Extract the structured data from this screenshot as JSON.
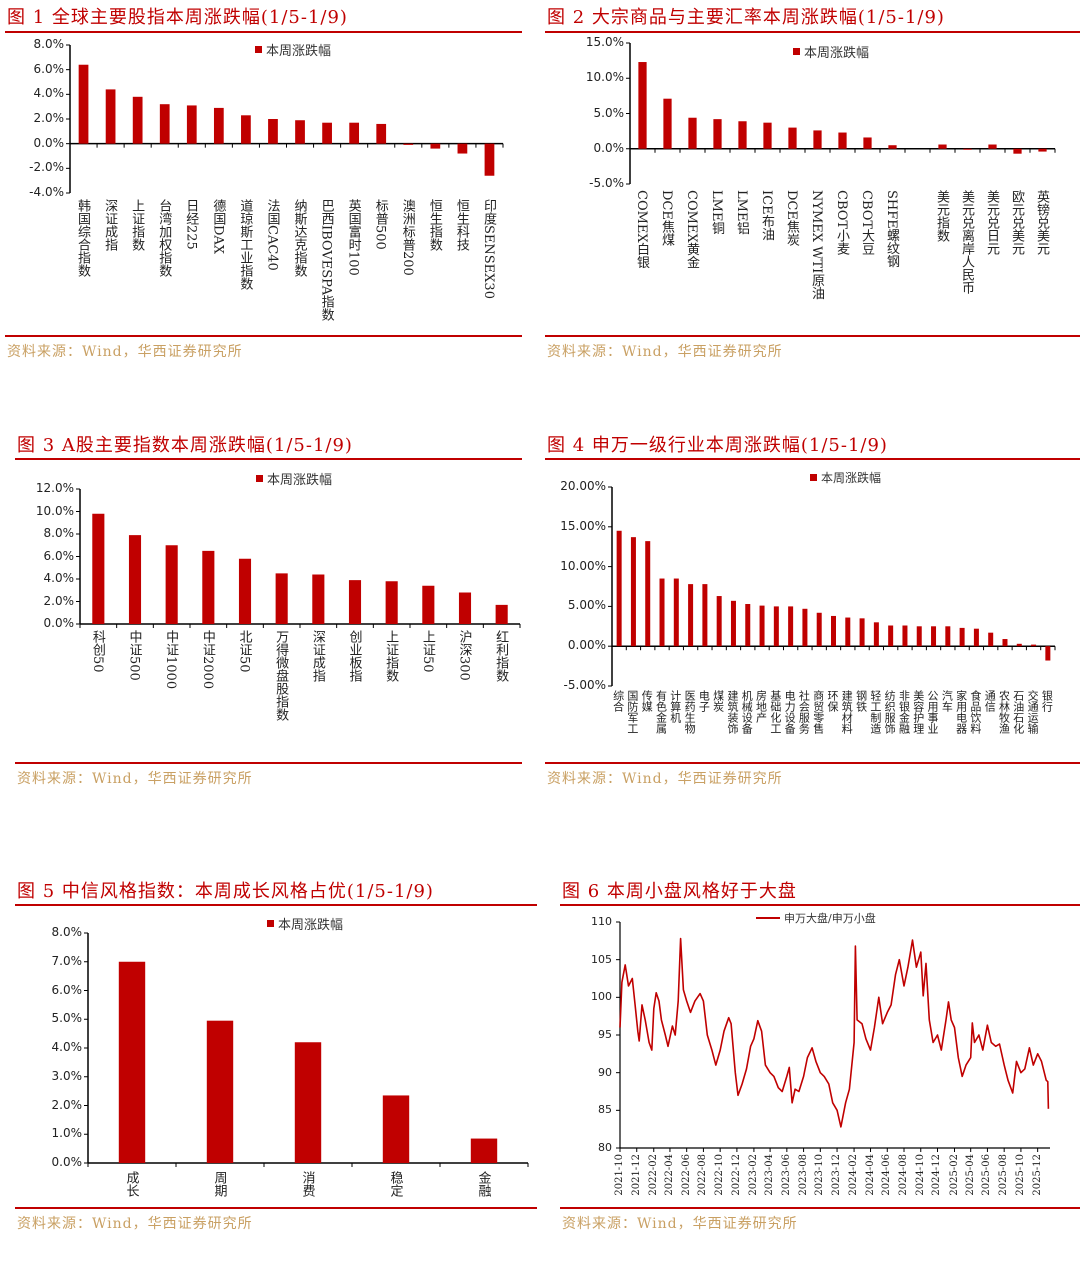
{
  "figures": [
    {
      "title": "图 1  全球主要股指本周涨跌幅(1/5-1/9)",
      "source": "资料来源：Wind，华西证券研究所"
    },
    {
      "title": "图 2  大宗商品与主要汇率本周涨跌幅(1/5-1/9)",
      "source": "资料来源：Wind，华西证券研究所"
    },
    {
      "title": "图 3 A股主要指数本周涨跌幅(1/5-1/9)",
      "source": "资料来源：Wind，华西证券研究所"
    },
    {
      "title": "图 4  申万一级行业本周涨跌幅(1/5-1/9)",
      "source": "资料来源：Wind，华西证券研究所"
    },
    {
      "title": "图 5  中信风格指数：本周成长风格占优(1/5-1/9)",
      "source": "资料来源：Wind，华西证券研究所"
    },
    {
      "title": "图 6  本周小盘风格好于大盘",
      "source": "资料来源：Wind，华西证券研究所"
    }
  ],
  "colors": {
    "bar": "#c00000",
    "title": "#c00000",
    "source": "#c9a063"
  },
  "chart_data": [
    {
      "type": "bar",
      "legend": "本周涨跌幅",
      "legend_position": "top-center",
      "categories": [
        "韩国综合指数",
        "深证成指",
        "上证指数",
        "台湾加权指数",
        "日经225",
        "德国DAX",
        "道琼斯工业指数",
        "法国CAC40",
        "纳斯达克指数",
        "巴西IBOVESPA指数",
        "英国富时100",
        "标普500",
        "澳洲标普200",
        "恒生指数",
        "恒生科技",
        "印度SENSEX30"
      ],
      "values": [
        6.4,
        4.4,
        3.8,
        3.2,
        3.1,
        2.9,
        2.3,
        2.0,
        1.9,
        1.7,
        1.7,
        1.6,
        -0.1,
        -0.4,
        -0.8,
        -2.6
      ],
      "ylim": [
        -4,
        8
      ],
      "yticks": [
        8,
        6,
        4,
        2,
        0,
        -2,
        -4
      ],
      "ytick_labels": [
        "8.0%",
        "6.0%",
        "4.0%",
        "2.0%",
        "0.0%",
        "-2.0%",
        "-4.0%"
      ],
      "unit": "%"
    },
    {
      "type": "bar",
      "legend": "本周涨跌幅",
      "legend_position": "top-center",
      "categories": [
        "COMEX白银",
        "DCE焦煤",
        "COMEX黄金",
        "LME铜",
        "LME铝",
        "ICE布油",
        "DCE焦炭",
        "NYMEX WTI原油",
        "CBOT小麦",
        "CBOT大豆",
        "SHFE螺纹钢",
        "",
        "美元指数",
        "美元兑离岸人民币",
        "美元兑日元",
        "欧元兑美元",
        "英镑兑美元"
      ],
      "values": [
        12.3,
        7.1,
        4.4,
        4.2,
        3.9,
        3.7,
        3.0,
        2.6,
        2.3,
        1.6,
        0.5,
        null,
        0.6,
        -0.05,
        0.6,
        -0.7,
        -0.4
      ],
      "ylim": [
        -5,
        15
      ],
      "yticks": [
        15,
        10,
        5,
        0,
        -5
      ],
      "ytick_labels": [
        "15.0%",
        "10.0%",
        "5.0%",
        "0.0%",
        "-5.0%"
      ],
      "unit": "%"
    },
    {
      "type": "bar",
      "legend": "本周涨跌幅",
      "legend_position": "top-center",
      "categories": [
        "科创50",
        "中证500",
        "中证1000",
        "中证2000",
        "北证50",
        "万得微盘股指数",
        "深证成指",
        "创业板指",
        "上证指数",
        "上证50",
        "沪深300",
        "红利指数"
      ],
      "values": [
        9.8,
        7.9,
        7.0,
        6.5,
        5.8,
        4.5,
        4.4,
        3.9,
        3.8,
        3.4,
        2.8,
        1.7
      ],
      "ylim": [
        0,
        12
      ],
      "yticks": [
        12,
        10,
        8,
        6,
        4,
        2,
        0
      ],
      "ytick_labels": [
        "12.0%",
        "10.0%",
        "8.0%",
        "6.0%",
        "4.0%",
        "2.0%",
        "0.0%"
      ],
      "unit": "%"
    },
    {
      "type": "bar",
      "legend": "本周涨跌幅",
      "legend_position": "top-center",
      "categories": [
        "综合",
        "国防军工",
        "传媒",
        "有色金属",
        "计算机",
        "医药生物",
        "电子",
        "煤炭",
        "建筑装饰",
        "机械设备",
        "房地产",
        "基础化工",
        "电力设备",
        "社会服务",
        "商贸零售",
        "环保",
        "建筑材料",
        "钢铁",
        "轻工制造",
        "纺织服饰",
        "非银金融",
        "美容护理",
        "公用事业",
        "汽车",
        "家用电器",
        "食品饮料",
        "通信",
        "农林牧渔",
        "石油石化",
        "交通运输",
        "银行"
      ],
      "values": [
        14.5,
        13.7,
        13.2,
        8.5,
        8.5,
        7.8,
        7.8,
        6.3,
        5.7,
        5.3,
        5.1,
        5.0,
        5.0,
        4.7,
        4.2,
        3.8,
        3.6,
        3.5,
        3.0,
        2.6,
        2.6,
        2.5,
        2.5,
        2.5,
        2.3,
        2.2,
        1.7,
        0.9,
        0.3,
        0.2,
        -1.8
      ],
      "ylim": [
        -5,
        20
      ],
      "yticks": [
        20,
        15,
        10,
        5,
        0,
        -5
      ],
      "ytick_labels": [
        "20.00%",
        "15.00%",
        "10.00%",
        "5.00%",
        "0.00%",
        "-5.00%"
      ],
      "unit": "%"
    },
    {
      "type": "bar",
      "legend": "本周涨跌幅",
      "legend_position": "top-center",
      "categories": [
        "成长",
        "周期",
        "消费",
        "稳定",
        "金融"
      ],
      "values": [
        7.0,
        4.95,
        4.2,
        2.35,
        0.85
      ],
      "ylim": [
        0,
        8
      ],
      "yticks": [
        8,
        7,
        6,
        5,
        4,
        3,
        2,
        1,
        0
      ],
      "ytick_labels": [
        "8.0%",
        "7.0%",
        "6.0%",
        "5.0%",
        "4.0%",
        "3.0%",
        "2.0%",
        "1.0%",
        "0.0%"
      ],
      "unit": "%"
    },
    {
      "type": "line",
      "legend_position": "top-center",
      "series": [
        {
          "name": "申万大盘/申万小盘",
          "points": [
            [
              "2021-10-01",
              96
            ],
            [
              "2021-10-08",
              102
            ],
            [
              "2021-10-20",
              104.3
            ],
            [
              "2021-11-01",
              101.5
            ],
            [
              "2021-11-15",
              102.5
            ],
            [
              "2021-11-25",
              99
            ],
            [
              "2021-12-05",
              95.5
            ],
            [
              "2021-12-10",
              94.2
            ],
            [
              "2021-12-20",
              99
            ],
            [
              "2022-01-01",
              97
            ],
            [
              "2022-01-15",
              94
            ],
            [
              "2022-01-25",
              93
            ],
            [
              "2022-02-01",
              98.5
            ],
            [
              "2022-02-10",
              100.6
            ],
            [
              "2022-02-20",
              99.5
            ],
            [
              "2022-03-01",
              97
            ],
            [
              "2022-03-15",
              95
            ],
            [
              "2022-03-25",
              93.5
            ],
            [
              "2022-04-10",
              96.2
            ],
            [
              "2022-04-20",
              95
            ],
            [
              "2022-05-01",
              99.5
            ],
            [
              "2022-05-10",
              107.8
            ],
            [
              "2022-05-20",
              101
            ],
            [
              "2022-06-01",
              99.5
            ],
            [
              "2022-06-15",
              98
            ],
            [
              "2022-07-01",
              99.5
            ],
            [
              "2022-07-20",
              100.5
            ],
            [
              "2022-08-01",
              99.5
            ],
            [
              "2022-08-15",
              95
            ],
            [
              "2022-09-01",
              93
            ],
            [
              "2022-09-15",
              91
            ],
            [
              "2022-10-01",
              93
            ],
            [
              "2022-10-15",
              95.5
            ],
            [
              "2022-11-01",
              97.3
            ],
            [
              "2022-11-10",
              96.5
            ],
            [
              "2022-11-25",
              90
            ],
            [
              "2022-12-05",
              87
            ],
            [
              "2022-12-20",
              88.5
            ],
            [
              "2023-01-05",
              90.5
            ],
            [
              "2023-01-20",
              93.5
            ],
            [
              "2023-02-01",
              94.5
            ],
            [
              "2023-02-15",
              96.9
            ],
            [
              "2023-03-01",
              95.5
            ],
            [
              "2023-03-15",
              91
            ],
            [
              "2023-04-01",
              90
            ],
            [
              "2023-04-15",
              89.5
            ],
            [
              "2023-05-01",
              88
            ],
            [
              "2023-05-15",
              87.5
            ],
            [
              "2023-06-01",
              89.5
            ],
            [
              "2023-06-10",
              90.7
            ],
            [
              "2023-06-20",
              86
            ],
            [
              "2023-07-01",
              87.8
            ],
            [
              "2023-07-15",
              87.5
            ],
            [
              "2023-08-01",
              89.5
            ],
            [
              "2023-08-15",
              92
            ],
            [
              "2023-09-01",
              93.3
            ],
            [
              "2023-09-15",
              91.5
            ],
            [
              "2023-10-01",
              90
            ],
            [
              "2023-10-15",
              89.5
            ],
            [
              "2023-11-01",
              88.5
            ],
            [
              "2023-11-15",
              86
            ],
            [
              "2023-12-01",
              85
            ],
            [
              "2023-12-15",
              82.8
            ],
            [
              "2024-01-01",
              86
            ],
            [
              "2024-01-15",
              87.8
            ],
            [
              "2024-02-01",
              94
            ],
            [
              "2024-02-06",
              106.8
            ],
            [
              "2024-02-12",
              97
            ],
            [
              "2024-03-01",
              96.5
            ],
            [
              "2024-03-15",
              94.5
            ],
            [
              "2024-04-01",
              93
            ],
            [
              "2024-04-15",
              96
            ],
            [
              "2024-05-01",
              100
            ],
            [
              "2024-05-15",
              96.5
            ],
            [
              "2024-06-01",
              98
            ],
            [
              "2024-06-15",
              99
            ],
            [
              "2024-07-01",
              103
            ],
            [
              "2024-07-15",
              105
            ],
            [
              "2024-08-01",
              101.5
            ],
            [
              "2024-08-15",
              104
            ],
            [
              "2024-09-01",
              107.6
            ],
            [
              "2024-09-15",
              104
            ],
            [
              "2024-10-01",
              106
            ],
            [
              "2024-10-10",
              100.2
            ],
            [
              "2024-10-20",
              104.5
            ],
            [
              "2024-11-01",
              97
            ],
            [
              "2024-11-15",
              94
            ],
            [
              "2024-12-01",
              95
            ],
            [
              "2024-12-15",
              93
            ],
            [
              "2025-01-01",
              97
            ],
            [
              "2025-01-10",
              99.4
            ],
            [
              "2025-01-20",
              97
            ],
            [
              "2025-02-01",
              96
            ],
            [
              "2025-02-15",
              92
            ],
            [
              "2025-03-01",
              89.5
            ],
            [
              "2025-03-15",
              91
            ],
            [
              "2025-04-01",
              92
            ],
            [
              "2025-04-07",
              96.6
            ],
            [
              "2025-04-15",
              94
            ],
            [
              "2025-05-01",
              95
            ],
            [
              "2025-05-15",
              93
            ],
            [
              "2025-06-01",
              96.3
            ],
            [
              "2025-06-15",
              94
            ],
            [
              "2025-07-01",
              93.5
            ],
            [
              "2025-07-15",
              93.8
            ],
            [
              "2025-08-01",
              91
            ],
            [
              "2025-08-15",
              89
            ],
            [
              "2025-09-01",
              87.3
            ],
            [
              "2025-09-15",
              91.5
            ],
            [
              "2025-10-01",
              90
            ],
            [
              "2025-10-15",
              90.5
            ],
            [
              "2025-11-01",
              93.3
            ],
            [
              "2025-11-15",
              91
            ],
            [
              "2025-12-01",
              92.5
            ],
            [
              "2025-12-15",
              91.5
            ],
            [
              "2026-01-01",
              89
            ],
            [
              "2026-01-07",
              88.8
            ],
            [
              "2026-01-09",
              85.2
            ]
          ]
        }
      ],
      "xlim": [
        "2021-10-01",
        "2026-01-15"
      ],
      "xtick_labels": [
        "2021-10",
        "2021-12",
        "2022-02",
        "2022-04",
        "2022-06",
        "2022-08",
        "2022-10",
        "2022-12",
        "2023-02",
        "2023-04",
        "2023-06",
        "2023-08",
        "2023-10",
        "2023-12",
        "2024-02",
        "2024-04",
        "2024-06",
        "2024-08",
        "2024-10",
        "2024-12",
        "2025-02",
        "2025-04",
        "2025-06",
        "2025-08",
        "2025-10",
        "2025-12"
      ],
      "ylim": [
        80,
        110
      ],
      "yticks": [
        110,
        105,
        100,
        95,
        90,
        85,
        80
      ],
      "ytick_labels": [
        "110",
        "105",
        "100",
        "95",
        "90",
        "85",
        "80"
      ]
    }
  ]
}
